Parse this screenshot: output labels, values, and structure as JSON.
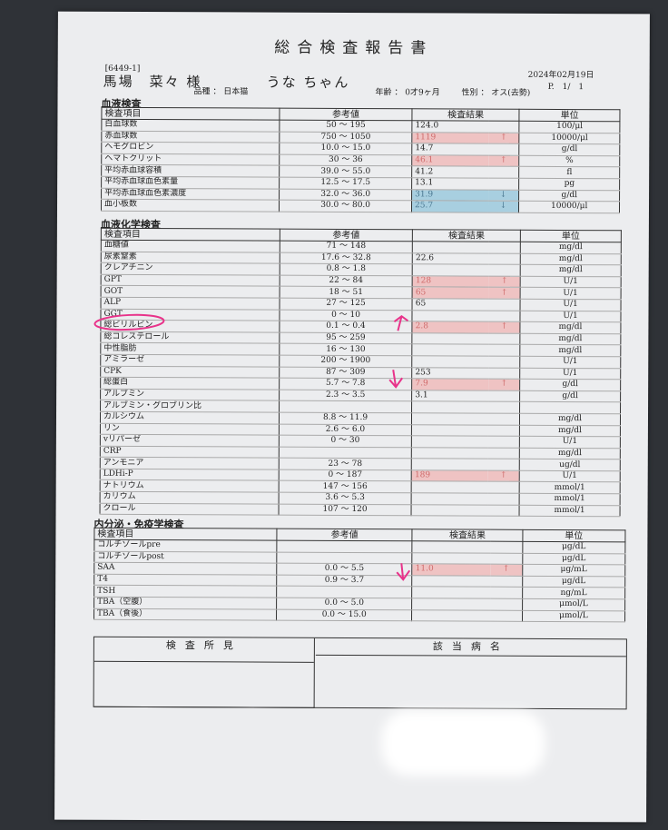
{
  "header": {
    "title": "総合検査報告書",
    "patient_id": "[6449-1]",
    "owner": "馬場　菜々 様",
    "pet": "うな ちゃん",
    "date": "2024年02月19日",
    "page": "P.　1/　1",
    "breed": "品種 ： 日本猫",
    "age": "年齢 ： 0才9ヶ月",
    "sex": "性別 ： オス(去勢)"
  },
  "columns": {
    "item": "検査項目",
    "ref": "参考値",
    "result": "検査結果",
    "unit": "単位"
  },
  "colors": {
    "high_bg": "#efc3c3",
    "high_text": "#cf6a6a",
    "low_bg": "#a8cfe0",
    "low_text": "#4a7790",
    "annotation": "#e8338a"
  },
  "sections": [
    {
      "title": "血液検査",
      "rows": [
        {
          "item": "白血球数",
          "ref": "50 ～ 195",
          "result": "124.0",
          "flag": "",
          "unit": "100/μl"
        },
        {
          "item": "赤血球数",
          "ref": "750 ～ 1050",
          "result": "1119",
          "flag": "↑",
          "unit": "10000/μl"
        },
        {
          "item": "ヘモグロビン",
          "ref": "10.0 ～ 15.0",
          "result": "14.7",
          "flag": "",
          "unit": "g/dl"
        },
        {
          "item": "ヘマトクリット",
          "ref": "30 ～ 36",
          "result": "46.1",
          "flag": "↑",
          "unit": "%"
        },
        {
          "item": "平均赤血球容積",
          "ref": "39.0 ～ 55.0",
          "result": "41.2",
          "flag": "",
          "unit": "fl"
        },
        {
          "item": "平均赤血球血色素量",
          "ref": "12.5 ～ 17.5",
          "result": "13.1",
          "flag": "",
          "unit": "pg"
        },
        {
          "item": "平均赤血球血色素濃度",
          "ref": "32.0 ～ 36.0",
          "result": "31.9",
          "flag": "↓",
          "unit": "g/dl"
        },
        {
          "item": "血小板数",
          "ref": "30.0 ～ 80.0",
          "result": "25.7",
          "flag": "↓",
          "unit": "10000/μl"
        }
      ]
    },
    {
      "title": "血液化学検査",
      "rows": [
        {
          "item": "血糖値",
          "ref": "71 ～ 148",
          "result": "",
          "flag": "",
          "unit": "mg/dl"
        },
        {
          "item": "尿素窒素",
          "ref": "17.6 ～ 32.8",
          "result": "22.6",
          "flag": "",
          "unit": "mg/dl"
        },
        {
          "item": "クレアチニン",
          "ref": "0.8 ～ 1.8",
          "result": "",
          "flag": "",
          "unit": "mg/dl"
        },
        {
          "item": "GPT",
          "ref": "22 ～ 84",
          "result": "128",
          "flag": "↑",
          "unit": "U/1"
        },
        {
          "item": "GOT",
          "ref": "18 ～ 51",
          "result": "65",
          "flag": "↑",
          "unit": "U/1"
        },
        {
          "item": "ALP",
          "ref": "27 ～ 125",
          "result": "65",
          "flag": "",
          "unit": "U/1"
        },
        {
          "item": "GGT",
          "ref": "0 ～ 10",
          "result": "",
          "flag": "",
          "unit": "U/1"
        },
        {
          "item": "総ビリルビン",
          "ref": "0.1 ～ 0.4",
          "result": "2.8",
          "flag": "↑",
          "unit": "mg/dl"
        },
        {
          "item": "総コレステロール",
          "ref": "95 ～ 259",
          "result": "",
          "flag": "",
          "unit": "mg/dl"
        },
        {
          "item": "中性脂肪",
          "ref": "16 ～ 130",
          "result": "",
          "flag": "",
          "unit": "mg/dl"
        },
        {
          "item": "アミラーゼ",
          "ref": "200 ～ 1900",
          "result": "",
          "flag": "",
          "unit": "U/1"
        },
        {
          "item": "CPK",
          "ref": "87 ～ 309",
          "result": "253",
          "flag": "",
          "unit": "U/1"
        },
        {
          "item": "総蛋白",
          "ref": "5.7 ～ 7.8",
          "result": "7.9",
          "flag": "↑",
          "unit": "g/dl"
        },
        {
          "item": "アルブミン",
          "ref": "2.3 ～ 3.5",
          "result": "3.1",
          "flag": "",
          "unit": "g/dl"
        },
        {
          "item": "アルブミン・グロブリン比",
          "ref": "",
          "result": "",
          "flag": "",
          "unit": ""
        },
        {
          "item": "カルシウム",
          "ref": "8.8 ～ 11.9",
          "result": "",
          "flag": "",
          "unit": "mg/dl"
        },
        {
          "item": "リン",
          "ref": "2.6 ～ 6.0",
          "result": "",
          "flag": "",
          "unit": "mg/dl"
        },
        {
          "item": "vリパーゼ",
          "ref": "0 ～ 30",
          "result": "",
          "flag": "",
          "unit": "U/1"
        },
        {
          "item": "CRP",
          "ref": "",
          "result": "",
          "flag": "",
          "unit": "mg/dl"
        },
        {
          "item": "アンモニア",
          "ref": "23 ～ 78",
          "result": "",
          "flag": "",
          "unit": "ug/dl"
        },
        {
          "item": "LDHi-P",
          "ref": "0 ～ 187",
          "result": "189",
          "flag": "↑",
          "unit": "U/1"
        },
        {
          "item": "ナトリウム",
          "ref": "147 ～ 156",
          "result": "",
          "flag": "",
          "unit": "mmol/1"
        },
        {
          "item": "カリウム",
          "ref": "3.6 ～ 5.3",
          "result": "",
          "flag": "",
          "unit": "mmol/1"
        },
        {
          "item": "クロール",
          "ref": "107 ～ 120",
          "result": "",
          "flag": "",
          "unit": "mmol/1"
        }
      ]
    },
    {
      "title": "内分泌・免疫学検査",
      "rows": [
        {
          "item": "コルチゾールpre",
          "ref": "",
          "result": "",
          "flag": "",
          "unit": "μg/dL"
        },
        {
          "item": "コルチゾールpost",
          "ref": "",
          "result": "",
          "flag": "",
          "unit": "μg/dL"
        },
        {
          "item": "SAA",
          "ref": "0.0 ～ 5.5",
          "result": "11.0",
          "flag": "↑",
          "unit": "μg/mL"
        },
        {
          "item": "T4",
          "ref": "0.9 ～ 3.7",
          "result": "",
          "flag": "",
          "unit": "μg/dL"
        },
        {
          "item": "TSH",
          "ref": "",
          "result": "",
          "flag": "",
          "unit": "ng/mL"
        },
        {
          "item": "TBA（空腹）",
          "ref": "0.0 ～ 5.0",
          "result": "",
          "flag": "",
          "unit": "μmol/L"
        },
        {
          "item": "TBA（食後）",
          "ref": "0.0 ～ 15.0",
          "result": "",
          "flag": "",
          "unit": "μmol/L"
        }
      ]
    }
  ],
  "findings": {
    "label": "検査所見",
    "disease_label": "該当病名"
  }
}
